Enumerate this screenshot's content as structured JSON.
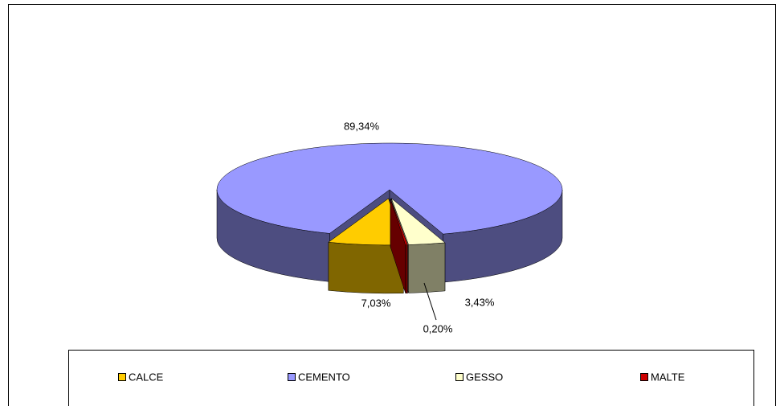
{
  "chart_data": {
    "type": "pie3d",
    "categories": [
      "CALCE",
      "CEMENTO",
      "GESSO",
      "MALTE"
    ],
    "values": [
      7.03,
      89.34,
      3.43,
      0.2
    ],
    "value_labels": [
      "7,03%",
      "89,34%",
      "3,43%",
      "0,20%"
    ],
    "colors": [
      "#ffcc00",
      "#9999ff",
      "#ffffcc",
      "#cc0000"
    ],
    "legend": "bottom"
  }
}
